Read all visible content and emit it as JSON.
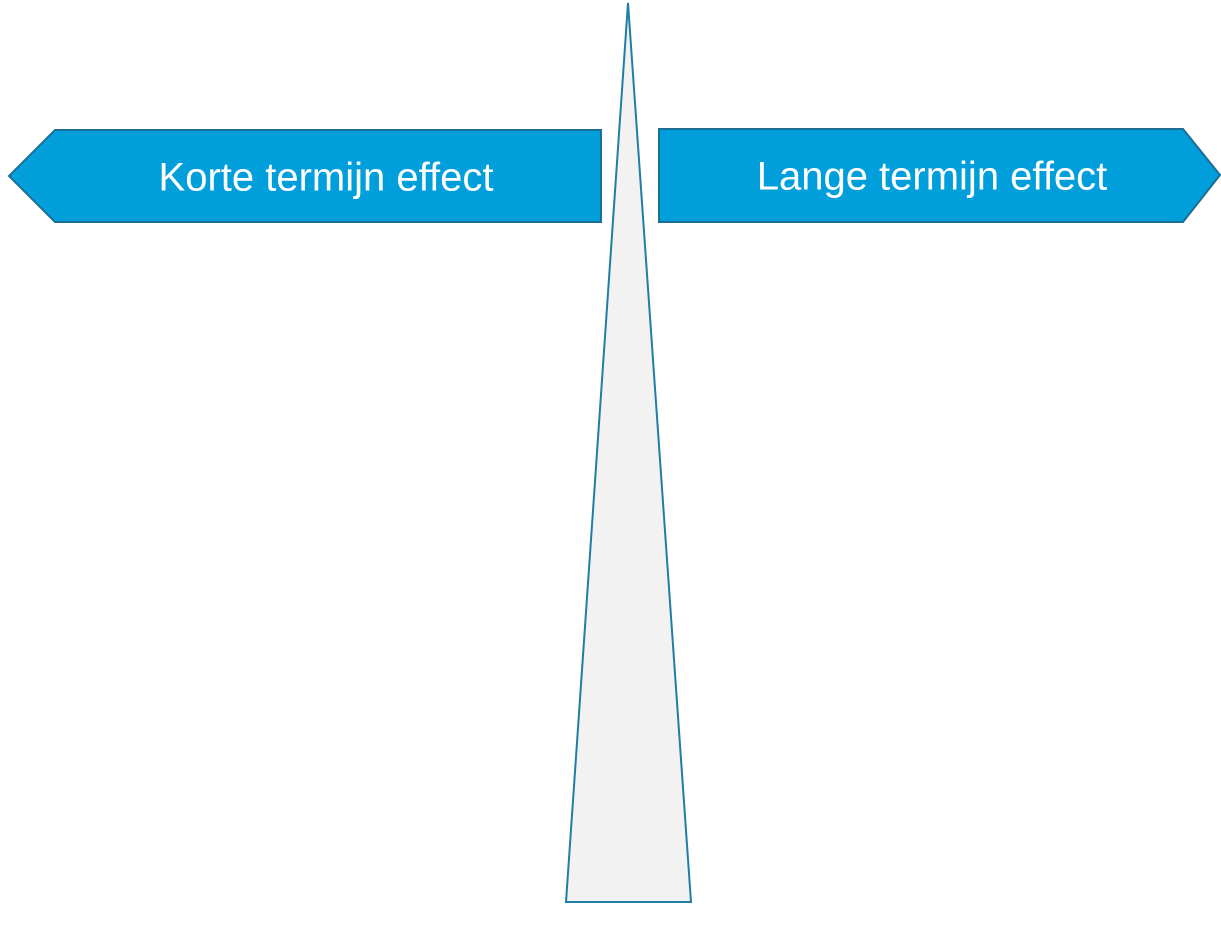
{
  "signs": [
    {
      "label": "Korte termijn effect"
    },
    {
      "label": "Lange termijn effect"
    }
  ]
}
